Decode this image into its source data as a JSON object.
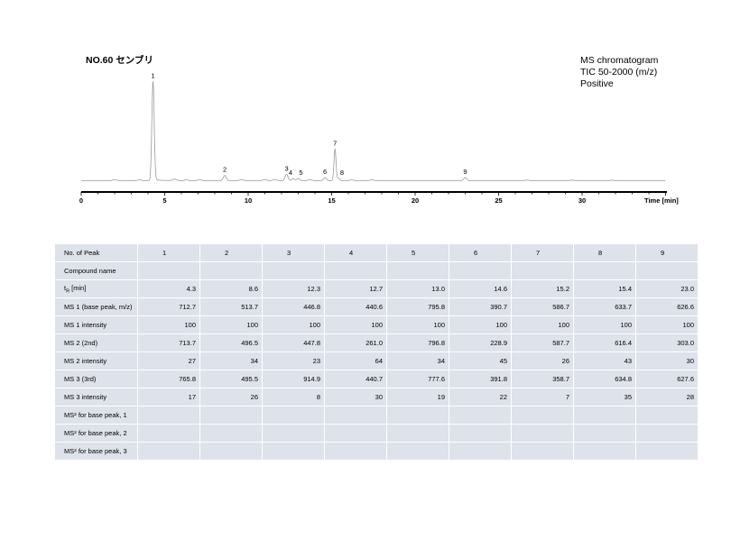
{
  "header": {
    "title": "NO.60 センブリ",
    "info_lines": [
      "MS chromatogram",
      "TIC 50-2000 (m/z)",
      "Positive"
    ]
  },
  "chart_data": {
    "type": "line",
    "title": "NO.60 センブリ",
    "xlabel": "Time [min]",
    "ylabel": "",
    "xlim": [
      0,
      35
    ],
    "ylim": [
      0,
      1.0
    ],
    "xticks": [
      0,
      5,
      10,
      15,
      20,
      25,
      30
    ],
    "tick_labels": [
      "0",
      "5",
      "10",
      "15",
      "20",
      "25",
      "30"
    ],
    "grid": false,
    "peaks": [
      {
        "label": "1",
        "x": 4.3,
        "y": 0.95
      },
      {
        "label": "2",
        "x": 8.6,
        "y": 0.05
      },
      {
        "label": "3",
        "x": 12.3,
        "y": 0.06
      },
      {
        "label": "4",
        "x": 12.7,
        "y": 0.02
      },
      {
        "label": "5",
        "x": 13.0,
        "y": 0.02
      },
      {
        "label": "6",
        "x": 14.6,
        "y": 0.03
      },
      {
        "label": "7",
        "x": 15.2,
        "y": 0.3
      },
      {
        "label": "8",
        "x": 15.4,
        "y": 0.02
      },
      {
        "label": "9",
        "x": 23.0,
        "y": 0.03
      }
    ]
  },
  "table": {
    "header_label": "No. of Peak",
    "peak_numbers": [
      "1",
      "2",
      "3",
      "4",
      "5",
      "6",
      "7",
      "8",
      "9"
    ],
    "rows": [
      {
        "label": "Compound name",
        "values": [
          "",
          "",
          "",
          "",
          "",
          "",
          "",
          "",
          ""
        ]
      },
      {
        "label_main": "t",
        "label_sub": "R",
        "label_rest": " [min]",
        "values": [
          "4.3",
          "8.6",
          "12.3",
          "12.7",
          "13.0",
          "14.6",
          "15.2",
          "15.4",
          "23.0"
        ]
      },
      {
        "label": "MS 1 (base peak, m/z)",
        "values": [
          "712.7",
          "513.7",
          "446.8",
          "440.6",
          "795.8",
          "390.7",
          "586.7",
          "633.7",
          "626.6"
        ]
      },
      {
        "label": "MS 1 intensity",
        "values": [
          "100",
          "100",
          "100",
          "100",
          "100",
          "100",
          "100",
          "100",
          "100"
        ]
      },
      {
        "label": "MS 2 (2nd)",
        "values": [
          "713.7",
          "496.5",
          "447.8",
          "261.0",
          "796.8",
          "228.9",
          "587.7",
          "616.4",
          "303.0"
        ]
      },
      {
        "label": "MS 2 intensity",
        "values": [
          "27",
          "34",
          "23",
          "64",
          "34",
          "45",
          "26",
          "43",
          "30"
        ]
      },
      {
        "label": "MS 3 (3rd)",
        "values": [
          "765.8",
          "495.5",
          "914.9",
          "440.7",
          "777.6",
          "391.8",
          "358.7",
          "634.8",
          "627.6"
        ]
      },
      {
        "label": "MS 3 intensity",
        "values": [
          "17",
          "26",
          "8",
          "30",
          "19",
          "22",
          "7",
          "35",
          "28"
        ]
      },
      {
        "label": "MS² for base peak, 1",
        "values": [
          "",
          "",
          "",
          "",
          "",
          "",
          "",
          "",
          ""
        ]
      },
      {
        "label": "MS² for base peak, 2",
        "values": [
          "",
          "",
          "",
          "",
          "",
          "",
          "",
          "",
          ""
        ]
      },
      {
        "label": "MS² for base peak, 3",
        "values": [
          "",
          "",
          "",
          "",
          "",
          "",
          "",
          "",
          ""
        ]
      }
    ]
  }
}
